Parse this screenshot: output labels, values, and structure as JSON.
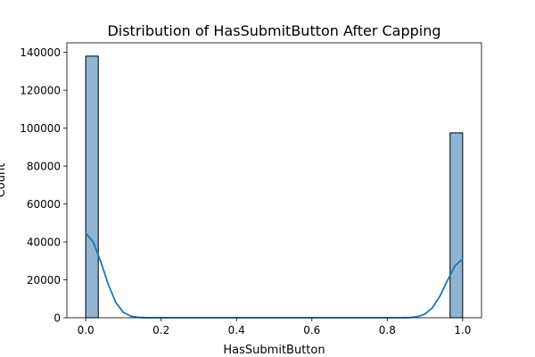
{
  "chart_data": {
    "type": "bar",
    "title": "Distribution of HasSubmitButton After Capping",
    "xlabel": "HasSubmitButton",
    "ylabel": "Count",
    "xlim": [
      -0.05,
      1.05
    ],
    "ylim": [
      0,
      145000
    ],
    "x_ticks": [
      0.0,
      0.2,
      0.4,
      0.6,
      0.8,
      1.0
    ],
    "x_tick_labels": [
      "0.0",
      "0.2",
      "0.4",
      "0.6",
      "0.8",
      "1.0"
    ],
    "y_ticks": [
      0,
      20000,
      40000,
      60000,
      80000,
      100000,
      120000,
      140000
    ],
    "y_tick_labels": [
      "0",
      "20000",
      "40000",
      "60000",
      "80000",
      "100000",
      "120000",
      "140000"
    ],
    "bins": [
      {
        "x0": 0.0,
        "x1": 0.0333,
        "count": 138000
      },
      {
        "x0": 0.9667,
        "x1": 1.0,
        "count": 97500
      }
    ],
    "kde": {
      "x": [
        0.0,
        0.02,
        0.04,
        0.06,
        0.08,
        0.1,
        0.12,
        0.14,
        0.16,
        0.2,
        0.4,
        0.6,
        0.8,
        0.84,
        0.86,
        0.88,
        0.9,
        0.92,
        0.94,
        0.96,
        0.98,
        1.0
      ],
      "y": [
        44500,
        40000,
        29500,
        17500,
        8000,
        2800,
        800,
        180,
        30,
        0,
        0,
        0,
        0,
        20,
        130,
        550,
        1900,
        5300,
        11500,
        19800,
        27500,
        31000
      ]
    },
    "colors": {
      "bar_fill": "#8fb4d4",
      "bar_edge": "#000000",
      "kde_line": "#1f77b4"
    },
    "grid": false
  }
}
